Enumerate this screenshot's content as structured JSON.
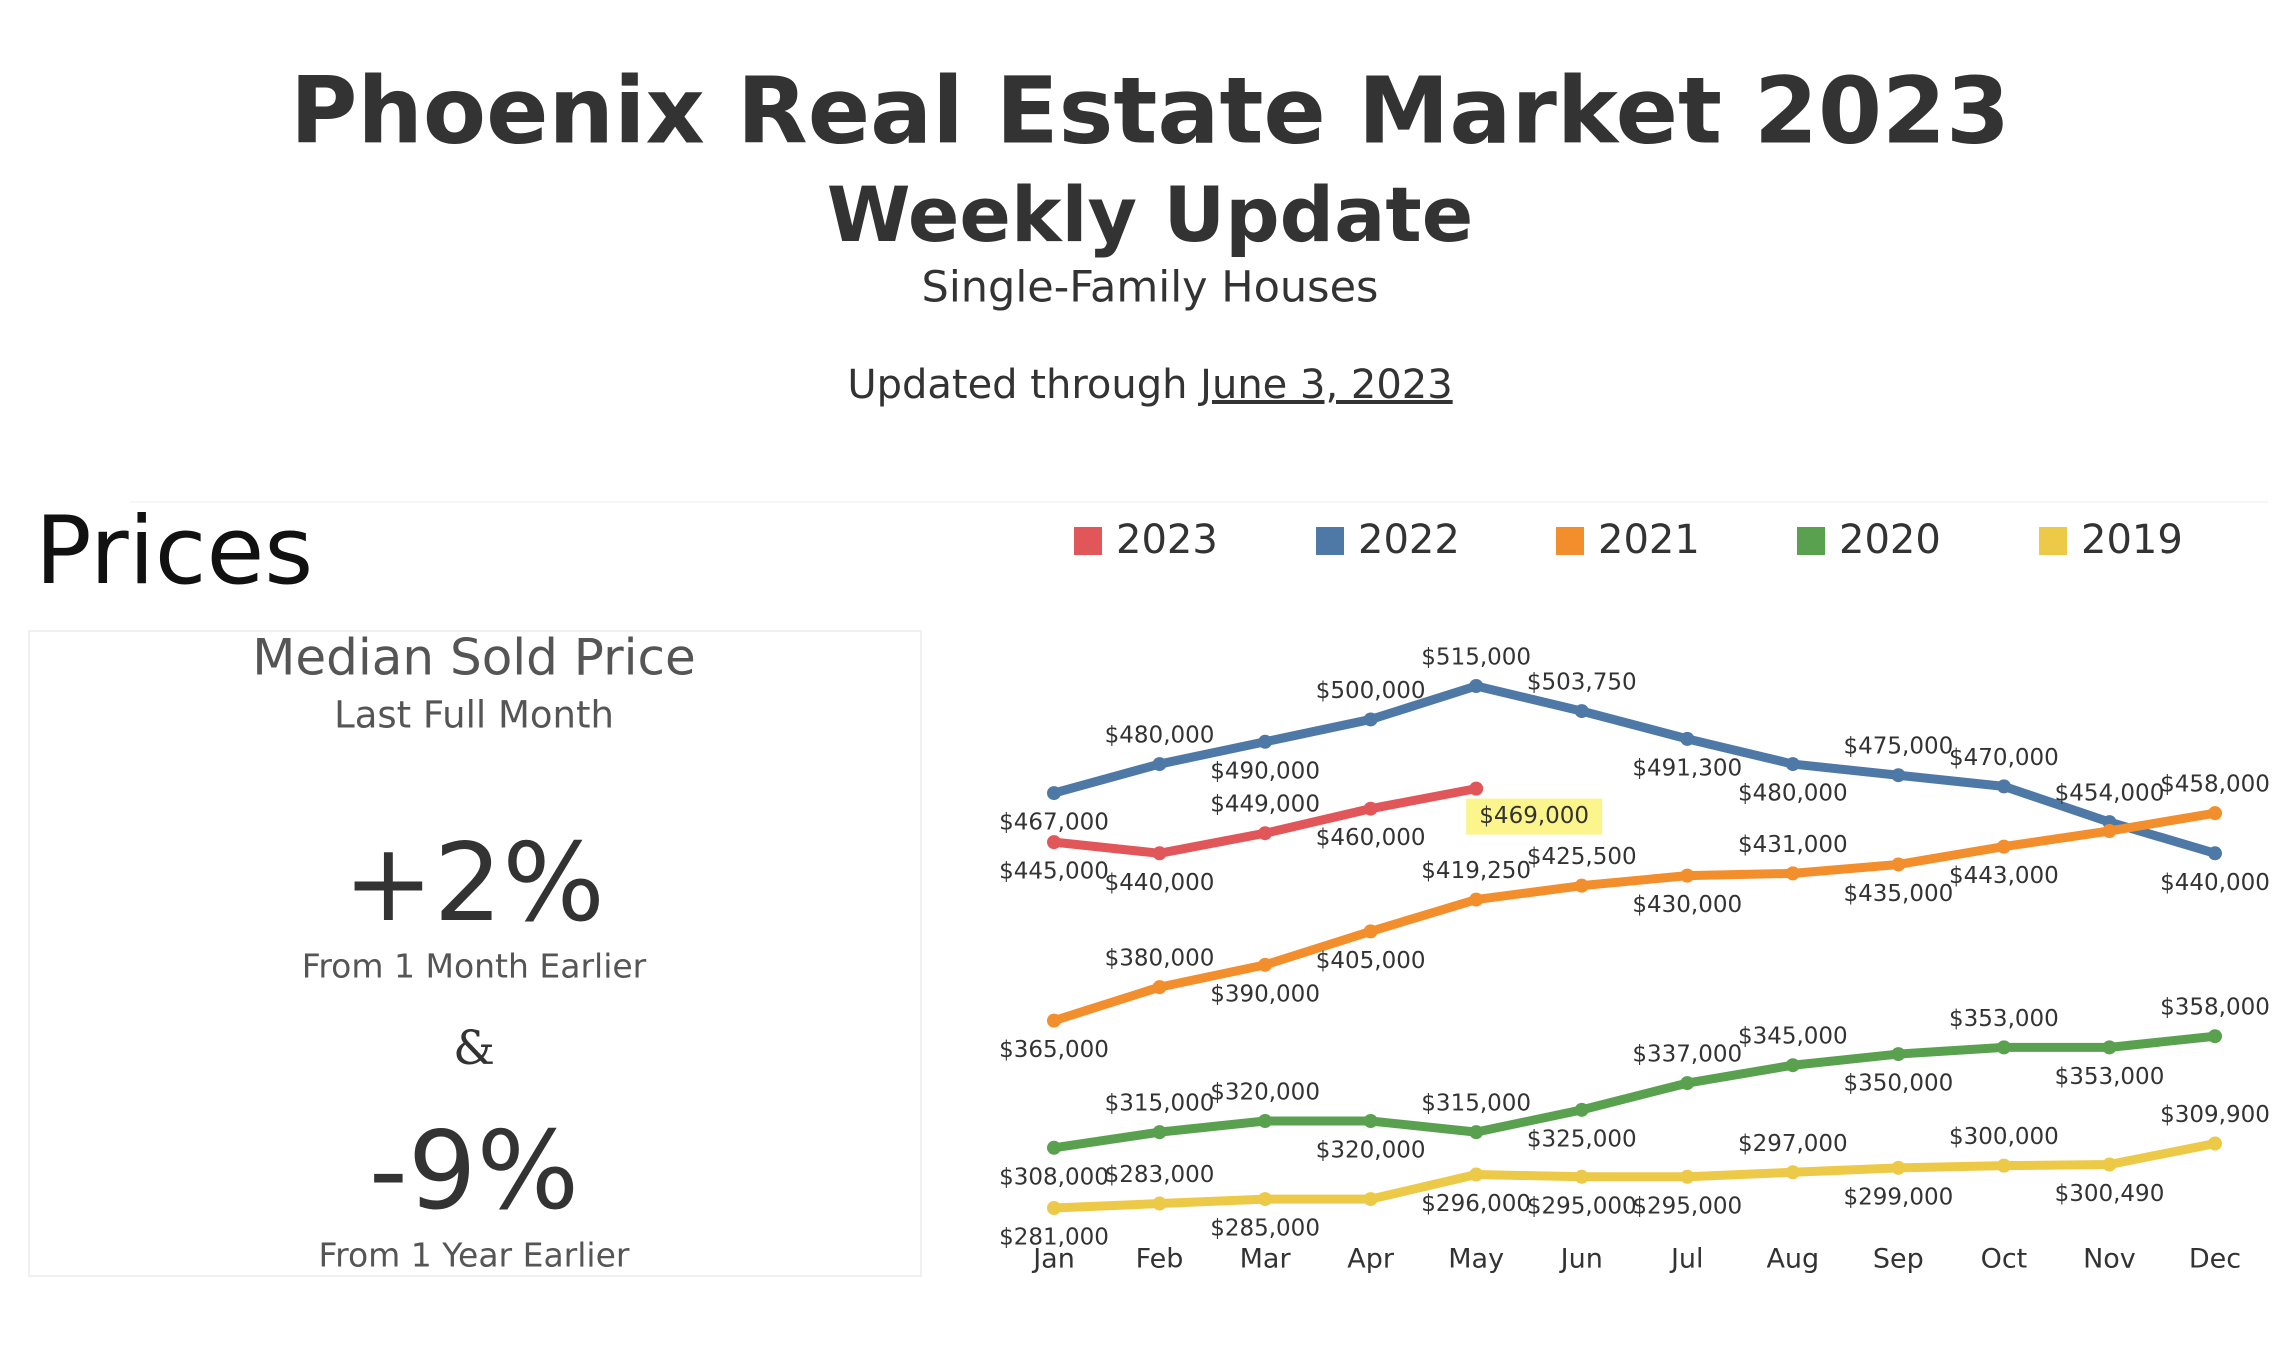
{
  "header": {
    "title": "Phoenix Real Estate Market 2023",
    "subtitle": "Weekly Update",
    "description": "Single-Family Houses",
    "updated_prefix": "Updated through",
    "updated_date": "June 3, 2023"
  },
  "panel": {
    "heading": "Prices",
    "title": "Median Sold Price",
    "subtitle": "Last Full Month",
    "stats": [
      {
        "value": "+2%",
        "caption": "From 1 Month Earlier"
      },
      {
        "value": "-9%",
        "caption": "From 1 Year Earlier"
      }
    ],
    "connector": "&"
  },
  "chart_data": {
    "type": "line",
    "categories": [
      "Jan",
      "Feb",
      "Mar",
      "Apr",
      "May",
      "Jun",
      "Jul",
      "Aug",
      "Sep",
      "Oct",
      "Nov",
      "Dec"
    ],
    "series": [
      {
        "name": "2023",
        "color": "#e15759",
        "values": [
          445000,
          440000,
          449000,
          460000,
          469000,
          null,
          null,
          null,
          null,
          null,
          null,
          null
        ],
        "value_labels": [
          "$445,000",
          "$440,000",
          "$449,000",
          "$460,000",
          "$469,000",
          null,
          null,
          null,
          null,
          null,
          null,
          null
        ]
      },
      {
        "name": "2022",
        "color": "#4e79a7",
        "values": [
          467000,
          480000,
          490000,
          500000,
          515000,
          503750,
          491300,
          480000,
          475000,
          470000,
          454000,
          440000
        ],
        "value_labels": [
          "$467,000",
          "$480,000",
          "$490,000",
          "$500,000",
          "$515,000",
          "$503,750",
          "$491,300",
          "$480,000",
          "$475,000",
          "$470,000",
          "$454,000",
          "$440,000"
        ]
      },
      {
        "name": "2021",
        "color": "#f28e2b",
        "values": [
          365000,
          380000,
          390000,
          405000,
          419250,
          425500,
          430000,
          431000,
          435000,
          443000,
          450000,
          458000
        ],
        "value_labels": [
          "$365,000",
          "$380,000",
          "$390,000",
          "$405,000",
          "$419,250",
          "$425,500",
          "$430,000",
          "$431,000",
          "$435,000",
          "$443,000",
          null,
          "$458,000"
        ]
      },
      {
        "name": "2020",
        "color": "#59a14f",
        "values": [
          308000,
          315000,
          320000,
          320000,
          315000,
          325000,
          337000,
          345000,
          350000,
          353000,
          353000,
          358000
        ],
        "value_labels": [
          "$308,000",
          "$315,000",
          "$320,000",
          "$320,000",
          "$315,000",
          "$325,000",
          "$337,000",
          "$345,000",
          "$350,000",
          "$353,000",
          "$353,000",
          "$358,000"
        ]
      },
      {
        "name": "2019",
        "color": "#edc948",
        "values": [
          281000,
          283000,
          285000,
          285000,
          296000,
          295000,
          295000,
          297000,
          299000,
          300000,
          300490,
          309900
        ],
        "value_labels": [
          "$281,000",
          "$283,000",
          "$285,000",
          null,
          "$296,000",
          "$295,000",
          "$295,000",
          "$297,000",
          "$299,000",
          "$300,000",
          "$300,490",
          "$309,900"
        ]
      }
    ]
  }
}
